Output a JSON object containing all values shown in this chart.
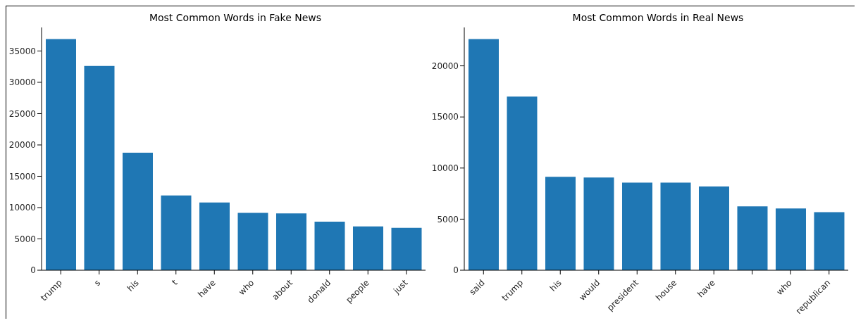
{
  "chart_data": [
    {
      "type": "bar",
      "title": "Most Common Words in Fake News",
      "categories": [
        "trump",
        "s",
        "his",
        "t",
        "have",
        "who",
        "about",
        "donald",
        "people",
        "just"
      ],
      "values": [
        36900,
        32600,
        18750,
        11950,
        10800,
        9150,
        9070,
        7740,
        7000,
        6780
      ],
      "color": "#1f77b4",
      "ylim": [
        0,
        38760
      ],
      "yticks": [
        0,
        5000,
        10000,
        15000,
        20000,
        25000,
        30000,
        35000
      ]
    },
    {
      "type": "bar",
      "title": "Most Common Words in Real News",
      "categories": [
        "said",
        "trump",
        "his",
        "would",
        "president",
        "house",
        "have",
        null,
        "who",
        "republican"
      ],
      "values": [
        22630,
        17000,
        9150,
        9070,
        8570,
        8570,
        8200,
        6250,
        6040,
        5680
      ],
      "color": "#1f77b4",
      "ylim": [
        0,
        23760
      ],
      "yticks": [
        0,
        5000,
        10000,
        15000,
        20000
      ]
    }
  ]
}
